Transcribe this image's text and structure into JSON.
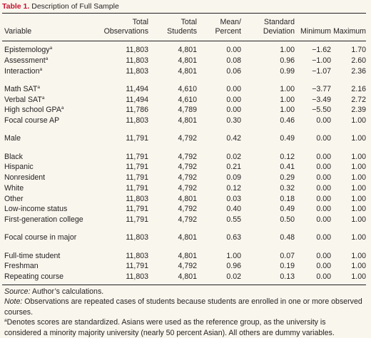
{
  "title": {
    "label": "Table 1.",
    "text": "Description of Full Sample"
  },
  "columns": [
    [
      "Variable"
    ],
    [
      "Total",
      "Observations"
    ],
    [
      "Total",
      "Students"
    ],
    [
      "Mean/",
      "Percent"
    ],
    [
      "Standard",
      "Deviation"
    ],
    [
      "Minimum"
    ],
    [
      "Maximum"
    ]
  ],
  "groups": [
    [
      {
        "name": "Epistemology",
        "sup": "a",
        "cells": [
          "11,803",
          "4,801",
          "0.00",
          "1.00",
          "−1.62",
          "1.70"
        ]
      },
      {
        "name": "Assessment",
        "sup": "a",
        "cells": [
          "11,803",
          "4,801",
          "0.08",
          "0.96",
          "−1.00",
          "2.60"
        ]
      },
      {
        "name": "Interaction",
        "sup": "a",
        "cells": [
          "11,803",
          "4,801",
          "0.06",
          "0.99",
          "−1.07",
          "2.36"
        ]
      }
    ],
    [
      {
        "name": "Math SAT",
        "sup": "a",
        "cells": [
          "11,494",
          "4,610",
          "0.00",
          "1.00",
          "−3.77",
          "2.16"
        ]
      },
      {
        "name": "Verbal SAT",
        "sup": "a",
        "cells": [
          "11,494",
          "4,610",
          "0.00",
          "1.00",
          "−3.49",
          "2.72"
        ]
      },
      {
        "name": "High school GPA",
        "sup": "a",
        "cells": [
          "11,786",
          "4,789",
          "0.00",
          "1.00",
          "−5.50",
          "2.39"
        ]
      },
      {
        "name": "Focal course AP",
        "sup": "",
        "cells": [
          "11,803",
          "4,801",
          "0.30",
          "0.46",
          "0.00",
          "1.00"
        ]
      }
    ],
    [
      {
        "name": "Male",
        "sup": "",
        "cells": [
          "11,791",
          "4,792",
          "0.42",
          "0.49",
          "0.00",
          "1.00"
        ]
      }
    ],
    [
      {
        "name": "Black",
        "sup": "",
        "cells": [
          "11,791",
          "4,792",
          "0.02",
          "0.12",
          "0.00",
          "1.00"
        ]
      },
      {
        "name": "Hispanic",
        "sup": "",
        "cells": [
          "11,791",
          "4,792",
          "0.21",
          "0.41",
          "0.00",
          "1.00"
        ]
      },
      {
        "name": "Nonresident",
        "sup": "",
        "cells": [
          "11,791",
          "4,792",
          "0.09",
          "0.29",
          "0.00",
          "1.00"
        ]
      },
      {
        "name": "White",
        "sup": "",
        "cells": [
          "11,791",
          "4,792",
          "0.12",
          "0.32",
          "0.00",
          "1.00"
        ]
      },
      {
        "name": "Other",
        "sup": "",
        "cells": [
          "11,803",
          "4,801",
          "0.03",
          "0.18",
          "0.00",
          "1.00"
        ]
      },
      {
        "name": "Low-income status",
        "sup": "",
        "cells": [
          "11,791",
          "4,792",
          "0.40",
          "0.49",
          "0.00",
          "1.00"
        ]
      },
      {
        "name": "First-generation college",
        "sup": "",
        "cells": [
          "11,791",
          "4,792",
          "0.55",
          "0.50",
          "0.00",
          "1.00"
        ]
      }
    ],
    [
      {
        "name": "Focal course in major",
        "sup": "",
        "cells": [
          "11,803",
          "4,801",
          "0.63",
          "0.48",
          "0.00",
          "1.00"
        ]
      }
    ],
    [
      {
        "name": "Full-time student",
        "sup": "",
        "cells": [
          "11,803",
          "4,801",
          "1.00",
          "0.07",
          "0.00",
          "1.00"
        ]
      },
      {
        "name": "Freshman",
        "sup": "",
        "cells": [
          "11,791",
          "4,792",
          "0.96",
          "0.19",
          "0.00",
          "1.00"
        ]
      },
      {
        "name": "Repeating course",
        "sup": "",
        "cells": [
          "11,803",
          "4,801",
          "0.02",
          "0.13",
          "0.00",
          "1.00"
        ]
      }
    ]
  ],
  "notes": {
    "source_label": "Source:",
    "source_text": " Author’s calculations.",
    "note_label": "Note:",
    "note_text": " Observations are repeated cases of students because students are enrolled in one or more observed courses.",
    "footnote_mark": "a",
    "footnote_text": "Denotes scores are standardized. Asians were used as the reference group, as the university is considered a minority majority university (nearly 50 percent Asian). All others are dummy variables."
  },
  "colors": {
    "background": "#f9f6ee",
    "title_label": "#c8102e",
    "text": "#231f20"
  }
}
